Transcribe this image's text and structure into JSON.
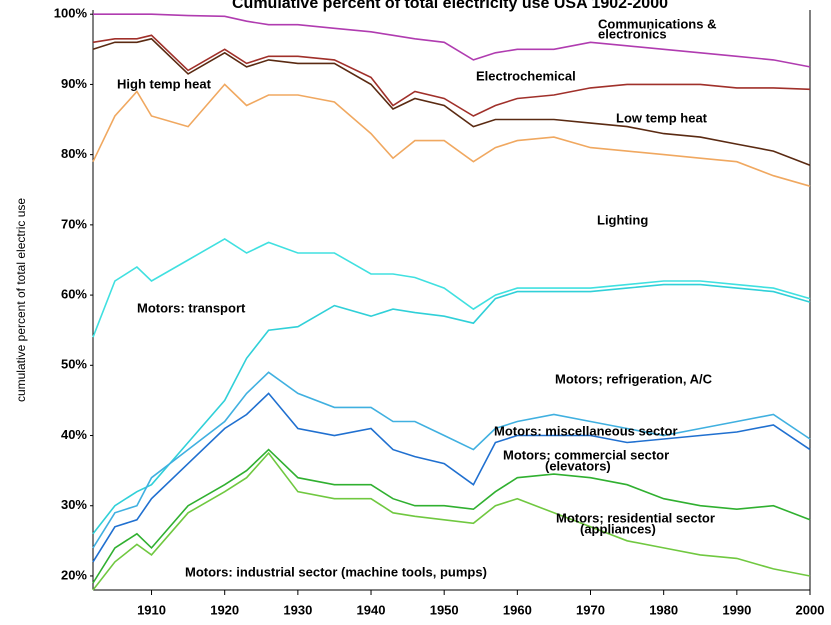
{
  "chart_data": {
    "type": "line",
    "title": "Cumulative percent of total electricity use USA 1902-2000",
    "ylabel": "cumulative percent of total electric use",
    "x": [
      1902,
      1905,
      1908,
      1910,
      1915,
      1920,
      1923,
      1926,
      1930,
      1935,
      1940,
      1943,
      1946,
      1950,
      1954,
      1957,
      1960,
      1965,
      1970,
      1975,
      1980,
      1985,
      1990,
      1995,
      2000
    ],
    "xlim": [
      1902,
      2000
    ],
    "xticks": [
      1910,
      1920,
      1930,
      1940,
      1950,
      1960,
      1970,
      1980,
      1990,
      2000
    ],
    "ylim": [
      18,
      100.6
    ],
    "yticks": [
      {
        "value": 20,
        "label": "20%"
      },
      {
        "value": 30,
        "label": "30%"
      },
      {
        "value": 40,
        "label": "40%"
      },
      {
        "value": 50,
        "label": "50%"
      },
      {
        "value": 60,
        "label": "60%"
      },
      {
        "value": 70,
        "label": "70%"
      },
      {
        "value": 80,
        "label": "80%"
      },
      {
        "value": 90,
        "label": "90%"
      },
      {
        "value": 100,
        "label": "100%"
      }
    ],
    "series": [
      {
        "color": "#b03cb0",
        "values": [
          100,
          100,
          100,
          100,
          99.8,
          99.7,
          99,
          98.5,
          98.5,
          98,
          97.5,
          97,
          96.5,
          96,
          93.5,
          94.5,
          95,
          95,
          96,
          95.5,
          95,
          94.5,
          94,
          93.5,
          92.5
        ]
      },
      {
        "color": "#a0302a",
        "values": [
          96,
          96.5,
          96.5,
          97,
          92,
          95,
          93,
          94,
          94,
          93.5,
          91,
          87,
          89,
          88,
          85.5,
          87,
          88,
          88.5,
          89.5,
          90,
          90,
          90,
          89.5,
          89.5,
          89.3
        ]
      },
      {
        "color": "#5a2a12",
        "values": [
          95,
          96,
          96,
          96.5,
          91.5,
          94.5,
          92.5,
          93.5,
          93,
          93,
          90,
          86.5,
          88,
          87,
          84,
          85,
          85,
          85,
          84.5,
          84,
          83,
          82.5,
          81.5,
          80.5,
          78.5
        ]
      },
      {
        "color": "#f0a860",
        "values": [
          79,
          85.5,
          89,
          85.5,
          84,
          90,
          87,
          88.5,
          88.5,
          87.5,
          83,
          79.5,
          82,
          82,
          79,
          81,
          82,
          82.5,
          81,
          80.5,
          80,
          79.5,
          79,
          77,
          75.5
        ]
      },
      {
        "color": "#40e0e0",
        "values": [
          54,
          62,
          64,
          62,
          65,
          68,
          66,
          67.5,
          66,
          66,
          63,
          63,
          62.5,
          61,
          58,
          60,
          61,
          61,
          61,
          61.5,
          62,
          62,
          61.5,
          61,
          59.5
        ]
      },
      {
        "color": "#30d0d8",
        "values": [
          26,
          30,
          32,
          33,
          39,
          45,
          51,
          55,
          55.5,
          58.5,
          57,
          58,
          57.5,
          57,
          56,
          59.5,
          60.5,
          60.5,
          60.5,
          61,
          61.5,
          61.5,
          61,
          60.5,
          59
        ]
      },
      {
        "color": "#40b0e0",
        "values": [
          24,
          29,
          30,
          34,
          38,
          42,
          46,
          49,
          46,
          44,
          44,
          42,
          42,
          40,
          38,
          41,
          42,
          43,
          42,
          41,
          40,
          41,
          42,
          43,
          39.5
        ]
      },
      {
        "color": "#2070d0",
        "values": [
          22,
          27,
          28,
          31,
          36,
          41,
          43,
          46,
          41,
          40,
          41,
          38,
          37,
          36,
          33,
          39,
          40,
          40,
          40,
          39,
          39.5,
          40,
          40.5,
          41.5,
          38
        ]
      },
      {
        "color": "#30b030",
        "values": [
          19,
          24,
          26,
          24,
          30,
          33,
          35,
          38,
          34,
          33,
          33,
          31,
          30,
          30,
          29.5,
          32,
          34,
          34.5,
          34,
          33,
          31,
          30,
          29.5,
          30,
          28
        ]
      },
      {
        "color": "#70c840",
        "values": [
          18,
          22,
          24.5,
          23,
          29,
          32,
          34,
          37.5,
          32,
          31,
          31,
          29,
          28.5,
          28,
          27.5,
          30,
          31,
          29,
          27,
          25,
          24,
          23,
          22.5,
          21,
          20
        ]
      }
    ],
    "annotations": [
      "Communications &",
      "electronics",
      "Electrochemical",
      "High temp heat",
      "Low temp heat",
      "Lighting",
      "Motors: transport",
      "Motors; refrigeration, A/C",
      "Motors: miscellaneous sector",
      "Motors; commercial sector",
      "(elevators)",
      "Motors; residential sector",
      "(appliances)",
      "Motors: industrial sector (machine tools, pumps)"
    ]
  }
}
